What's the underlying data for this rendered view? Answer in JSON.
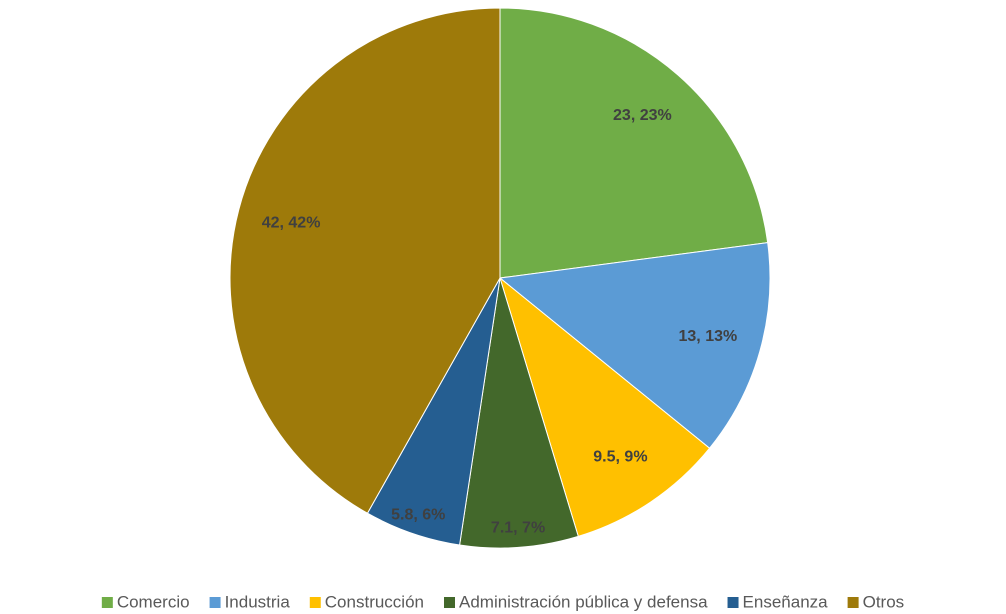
{
  "chart_data": {
    "type": "pie",
    "categories": [
      "Comercio",
      "Industria",
      "Construcción",
      "Administración pública y defensa",
      "Enseñanza",
      "Otros"
    ],
    "values": [
      23,
      13,
      9.5,
      7.1,
      5.8,
      42
    ],
    "value_labels": [
      "23, 23%",
      "13, 13%",
      "9.5, 9%",
      "7.1, 7%",
      "5.8, 6%",
      "42, 42%"
    ],
    "colors": [
      "#70ad47",
      "#5b9bd5",
      "#ffc000",
      "#43682b",
      "#255e91",
      "#9e7a0a"
    ],
    "legend": "bottom"
  }
}
